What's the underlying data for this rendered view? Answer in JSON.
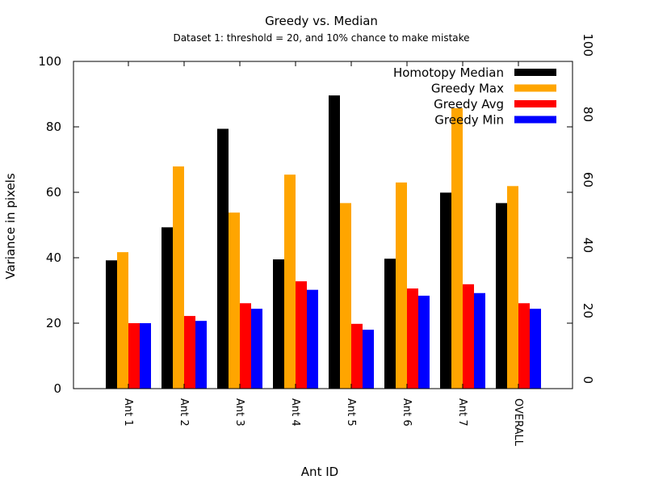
{
  "chart_data": {
    "type": "bar",
    "title": "Greedy vs. Median",
    "subtitle": "Dataset 1: threshold = 20, and 10% chance to make mistake",
    "xlabel": "Ant ID",
    "ylabel": "Variance in pixels",
    "ylim": [
      0,
      100
    ],
    "y2lim": [
      0,
      100
    ],
    "yticks": [
      "0",
      "20",
      "40",
      "60",
      "80",
      "100"
    ],
    "y2ticks": [
      "0",
      "20",
      "40",
      "60",
      "80",
      "100"
    ],
    "categories": [
      "Ant 1",
      "Ant 2",
      "Ant 3",
      "Ant 4",
      "Ant 5",
      "Ant 6",
      "Ant 7",
      "OVERALL"
    ],
    "legend_position": "top-right",
    "grid": false,
    "series": [
      {
        "name": "Homotopy Median",
        "color": "#000000",
        "values": [
          39.2,
          49.3,
          79.4,
          39.5,
          89.6,
          39.7,
          59.9,
          56.7
        ]
      },
      {
        "name": "Greedy Max",
        "color": "#ffa500",
        "values": [
          41.7,
          67.9,
          53.8,
          65.4,
          56.7,
          63.0,
          85.7,
          61.9
        ]
      },
      {
        "name": "Greedy Avg",
        "color": "#ff0000",
        "values": [
          20.0,
          22.2,
          26.1,
          32.8,
          19.8,
          30.6,
          31.9,
          26.1
        ]
      },
      {
        "name": "Greedy Min",
        "color": "#0000ff",
        "values": [
          20.0,
          20.7,
          24.4,
          30.2,
          18.0,
          28.4,
          29.2,
          24.4
        ]
      }
    ]
  }
}
